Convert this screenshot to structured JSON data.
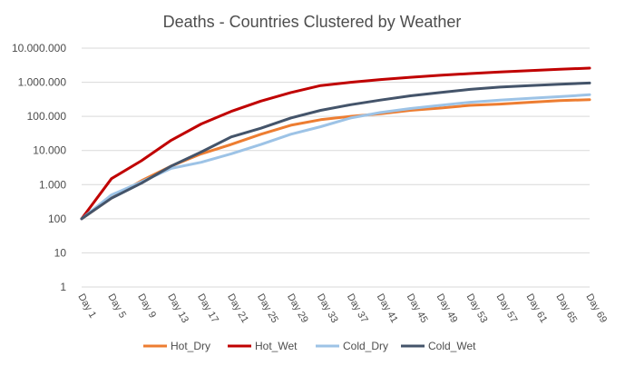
{
  "chart_data": {
    "type": "line",
    "title": "Deaths - Countries Clustered by Weather",
    "xlabel": "",
    "ylabel": "",
    "y_scale": "log",
    "ylim": [
      1,
      10000000
    ],
    "grid": true,
    "legend_position": "bottom",
    "y_ticks": [
      {
        "value": 1,
        "label": "1"
      },
      {
        "value": 10,
        "label": "10"
      },
      {
        "value": 100,
        "label": "100"
      },
      {
        "value": 1000,
        "label": "1.000"
      },
      {
        "value": 10000,
        "label": "10.000"
      },
      {
        "value": 100000,
        "label": "100.000"
      },
      {
        "value": 1000000,
        "label": "1.000.000"
      },
      {
        "value": 10000000,
        "label": "10.000.000"
      }
    ],
    "x_days": [
      1,
      5,
      9,
      13,
      17,
      21,
      25,
      29,
      33,
      37,
      41,
      45,
      49,
      53,
      57,
      61,
      65,
      69
    ],
    "x_tick_labels": [
      "Day 1",
      "Day 5",
      "Day 9",
      "Day 13",
      "Day 17",
      "Day 21",
      "Day 25",
      "Day 29",
      "Day 33",
      "Day 37",
      "Day 41",
      "Day 45",
      "Day 49",
      "Day 53",
      "Day 57",
      "Day 61",
      "Day 65",
      "Day 69"
    ],
    "series": [
      {
        "name": "Hot_Dry",
        "color": "#ed7d31",
        "values": [
          100,
          400,
          1300,
          3500,
          8000,
          15000,
          30000,
          55000,
          80000,
          100000,
          120000,
          150000,
          175000,
          210000,
          230000,
          260000,
          290000,
          310000
        ]
      },
      {
        "name": "Hot_Wet",
        "color": "#c00000",
        "values": [
          100,
          1500,
          5000,
          20000,
          60000,
          140000,
          280000,
          500000,
          800000,
          1000000,
          1200000,
          1400000,
          1600000,
          1800000,
          2000000,
          2200000,
          2400000,
          2600000
        ]
      },
      {
        "name": "Cold_Dry",
        "color": "#9dc3e6",
        "values": [
          100,
          500,
          1200,
          3000,
          4500,
          8000,
          15000,
          30000,
          50000,
          90000,
          130000,
          170000,
          210000,
          260000,
          300000,
          340000,
          380000,
          430000
        ]
      },
      {
        "name": "Cold_Wet",
        "color": "#44546a",
        "values": [
          100,
          400,
          1100,
          3500,
          9000,
          25000,
          45000,
          90000,
          150000,
          220000,
          300000,
          400000,
          500000,
          620000,
          720000,
          800000,
          880000,
          950000
        ]
      }
    ]
  }
}
